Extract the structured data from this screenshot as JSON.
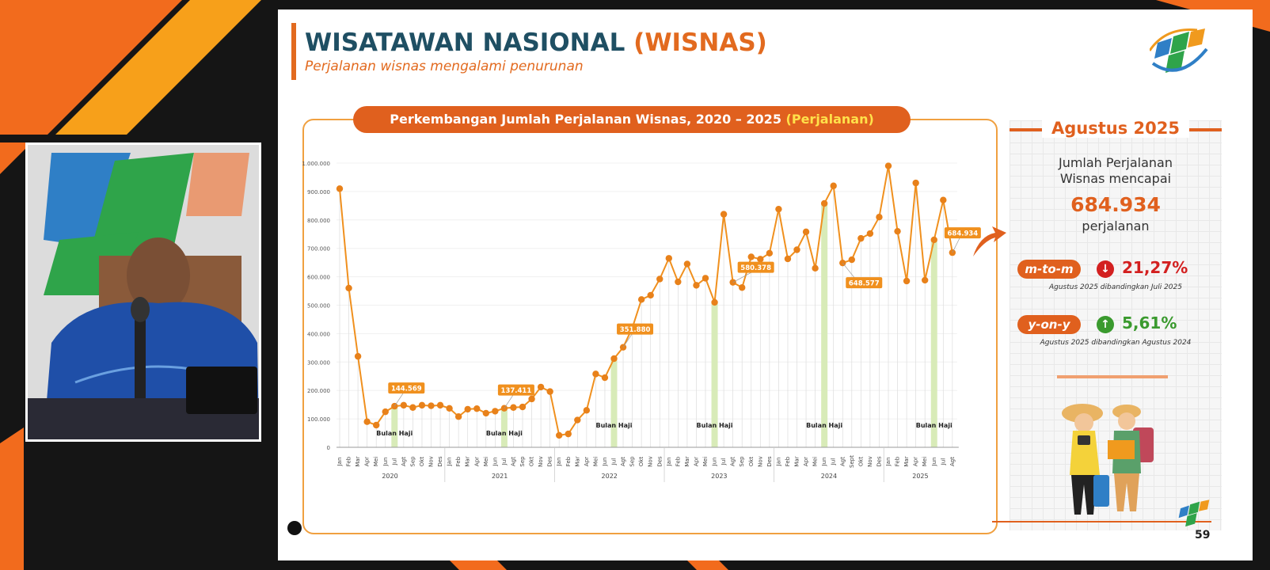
{
  "slide": {
    "title_main": "WISATAWAN NASIONAL",
    "title_accent": "(WISNAS)",
    "subtitle": "Perjalanan wisnas mengalami penurunan",
    "chart_title_main": "Perkembangan Jumlah Perjalanan Wisnas, 2020 – 2025",
    "chart_title_unit": "(Perjalanan)",
    "page_number": "59"
  },
  "panel": {
    "heading": "Agustus 2025",
    "line1": "Jumlah Perjalanan",
    "line2": "Wisnas mencapai",
    "value": "684.934",
    "unit": "perjalanan",
    "mtm_label": "m-to-m",
    "mtm_value": "21,27%",
    "mtm_note": "Agustus 2025 dibandingkan Juli 2025",
    "yoy_label": "y-on-y",
    "yoy_value": "5,61%",
    "yoy_note": "Agustus 2025 dibandingkan Agustus 2024"
  },
  "colors": {
    "accent": "#e0601e",
    "line": "#f0901e",
    "title_blue": "#1f4f63",
    "down": "#d32020",
    "up": "#3a9a2e",
    "haji_bar": "#d8ebb8"
  },
  "chart_data": {
    "type": "line",
    "title": "Perkembangan Jumlah Perjalanan Wisnas, 2020 – 2025 (Perjalanan)",
    "ylim": [
      0,
      1000000
    ],
    "y_ticks": [
      "0",
      "100.000",
      "200.000",
      "300.000",
      "400.000",
      "500.000",
      "600.000",
      "700.000",
      "800.000",
      "900.000",
      "1.000.000"
    ],
    "y_tick_values": [
      0,
      100000,
      200000,
      300000,
      400000,
      500000,
      600000,
      700000,
      800000,
      900000,
      1000000
    ],
    "years": [
      "2020",
      "2021",
      "2022",
      "2023",
      "2024",
      "2025"
    ],
    "month_labels": [
      [
        "Jan",
        "Feb",
        "Mar",
        "Apr",
        "Mei",
        "Jun",
        "Jul",
        "Agt",
        "Sep",
        "Okt",
        "Nov",
        "Des"
      ],
      [
        "Jan",
        "Feb",
        "Mar",
        "Apr",
        "Mei",
        "Jun",
        "Jul",
        "Agt",
        "Sep",
        "Okt",
        "Nov",
        "Des"
      ],
      [
        "Jan",
        "Feb",
        "Mar",
        "Apr",
        "Mei",
        "Jun",
        "Jul",
        "Agt",
        "Sep",
        "Okt",
        "Nov",
        "Des"
      ],
      [
        "Jan",
        "Feb",
        "Mar",
        "Apr",
        "Mei",
        "Jun",
        "Jul",
        "Agt",
        "Sep",
        "Okt",
        "Nov",
        "Des"
      ],
      [
        "Jan",
        "Feb",
        "Mar",
        "Apr",
        "Mei",
        "Jun",
        "Jul",
        "Agt",
        "Sept",
        "Okt",
        "Nov",
        "Des"
      ],
      [
        "Jan",
        "Feb",
        "Mar",
        "Apr",
        "Mei",
        "Jun",
        "Jul",
        "Agt"
      ]
    ],
    "values": [
      910000,
      560000,
      320000,
      90000,
      78000,
      125000,
      144569,
      148000,
      140000,
      148000,
      146000,
      148000,
      137000,
      108000,
      134000,
      136000,
      120000,
      127000,
      137411,
      140000,
      142000,
      170000,
      212000,
      196000,
      42000,
      47000,
      96000,
      130000,
      258000,
      245000,
      312000,
      351880,
      420000,
      520000,
      535000,
      592000,
      665000,
      582000,
      645000,
      570000,
      595000,
      510000,
      820000,
      580378,
      562000,
      670000,
      662000,
      683000,
      838000,
      663000,
      695000,
      758000,
      630000,
      858000,
      920000,
      648577,
      660000,
      735000,
      752000,
      810000,
      990000,
      760000,
      585000,
      930000,
      588000,
      730000,
      870000,
      684934
    ],
    "haji_months": [
      6,
      18,
      30,
      41,
      53,
      65
    ],
    "haji_label": "Bulan Haji",
    "callouts": [
      {
        "index": 6,
        "label": "144.569"
      },
      {
        "index": 18,
        "label": "137.411"
      },
      {
        "index": 31,
        "label": "351.880"
      },
      {
        "index": 43,
        "label": "580.378"
      },
      {
        "index": 55,
        "label": "648.577"
      },
      {
        "index": 67,
        "label": "684.934"
      }
    ],
    "grid": true
  }
}
